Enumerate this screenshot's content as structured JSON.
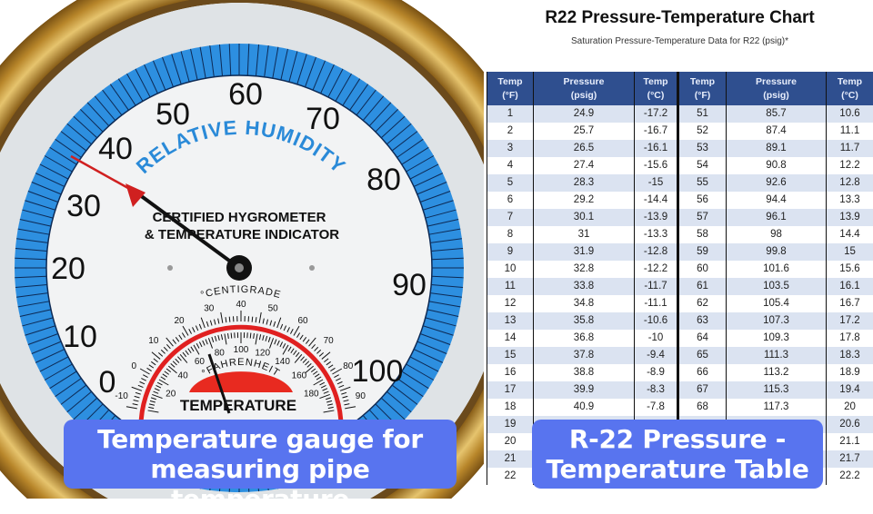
{
  "gauge": {
    "humidity_label": "RELATIVE HUMIDITY",
    "line1": "CERTIFIED HYGROMETER",
    "line2": "& TEMPERATURE INDICATOR",
    "scale": [
      "0",
      "10",
      "20",
      "30",
      "40",
      "50",
      "60",
      "70",
      "80",
      "90",
      "100"
    ],
    "centigrade_label": "°CENTIGRADE",
    "fahrenheit_label": "°FAHRENHEIT",
    "temperature_label": "TEMPERATURE",
    "celsius_ticks": [
      "-10",
      "0",
      "10",
      "20",
      "30",
      "40",
      "50",
      "60",
      "70",
      "80",
      "90"
    ],
    "fahrenheit_ticks": [
      "20",
      "40",
      "60",
      "80",
      "100",
      "120",
      "140",
      "160",
      "180"
    ],
    "colors": {
      "blue": "#2d8fe0",
      "red": "#e02020",
      "gold": "#b8862a"
    }
  },
  "left_caption": {
    "line1": "Temperature gauge for",
    "line2": "measuring pipe temperature"
  },
  "right_caption": {
    "line1": "R-22 Pressure -",
    "line2": "Temperature Table"
  },
  "chart": {
    "title": "R22 Pressure-Temperature Chart",
    "subtitle": "Saturation Pressure-Temperature Data for R22 (psig)*",
    "headers": [
      [
        "Temp",
        "(°F)"
      ],
      [
        "Pressure",
        "(psig)"
      ],
      [
        "Temp",
        "(°C)"
      ],
      [
        "Temp",
        "(°F)"
      ],
      [
        "Pressure",
        "(psig)"
      ],
      [
        "Temp",
        "(°C)"
      ]
    ],
    "rows": [
      [
        "1",
        "24.9",
        "-17.2",
        "51",
        "85.7",
        "10.6"
      ],
      [
        "2",
        "25.7",
        "-16.7",
        "52",
        "87.4",
        "11.1"
      ],
      [
        "3",
        "26.5",
        "-16.1",
        "53",
        "89.1",
        "11.7"
      ],
      [
        "4",
        "27.4",
        "-15.6",
        "54",
        "90.8",
        "12.2"
      ],
      [
        "5",
        "28.3",
        "-15",
        "55",
        "92.6",
        "12.8"
      ],
      [
        "6",
        "29.2",
        "-14.4",
        "56",
        "94.4",
        "13.3"
      ],
      [
        "7",
        "30.1",
        "-13.9",
        "57",
        "96.1",
        "13.9"
      ],
      [
        "8",
        "31",
        "-13.3",
        "58",
        "98",
        "14.4"
      ],
      [
        "9",
        "31.9",
        "-12.8",
        "59",
        "99.8",
        "15"
      ],
      [
        "10",
        "32.8",
        "-12.2",
        "60",
        "101.6",
        "15.6"
      ],
      [
        "11",
        "33.8",
        "-11.7",
        "61",
        "103.5",
        "16.1"
      ],
      [
        "12",
        "34.8",
        "-11.1",
        "62",
        "105.4",
        "16.7"
      ],
      [
        "13",
        "35.8",
        "-10.6",
        "63",
        "107.3",
        "17.2"
      ],
      [
        "14",
        "36.8",
        "-10",
        "64",
        "109.3",
        "17.8"
      ],
      [
        "15",
        "37.8",
        "-9.4",
        "65",
        "111.3",
        "18.3"
      ],
      [
        "16",
        "38.8",
        "-8.9",
        "66",
        "113.2",
        "18.9"
      ],
      [
        "17",
        "39.9",
        "-8.3",
        "67",
        "115.3",
        "19.4"
      ],
      [
        "18",
        "40.9",
        "-7.8",
        "68",
        "117.3",
        "20"
      ],
      [
        "19",
        "",
        "",
        "",
        "",
        "20.6"
      ],
      [
        "20",
        "",
        "",
        "",
        "",
        "21.1"
      ],
      [
        "21",
        "",
        "",
        "",
        "",
        "21.7"
      ],
      [
        "22",
        "",
        "",
        "",
        "",
        "22.2"
      ]
    ]
  }
}
